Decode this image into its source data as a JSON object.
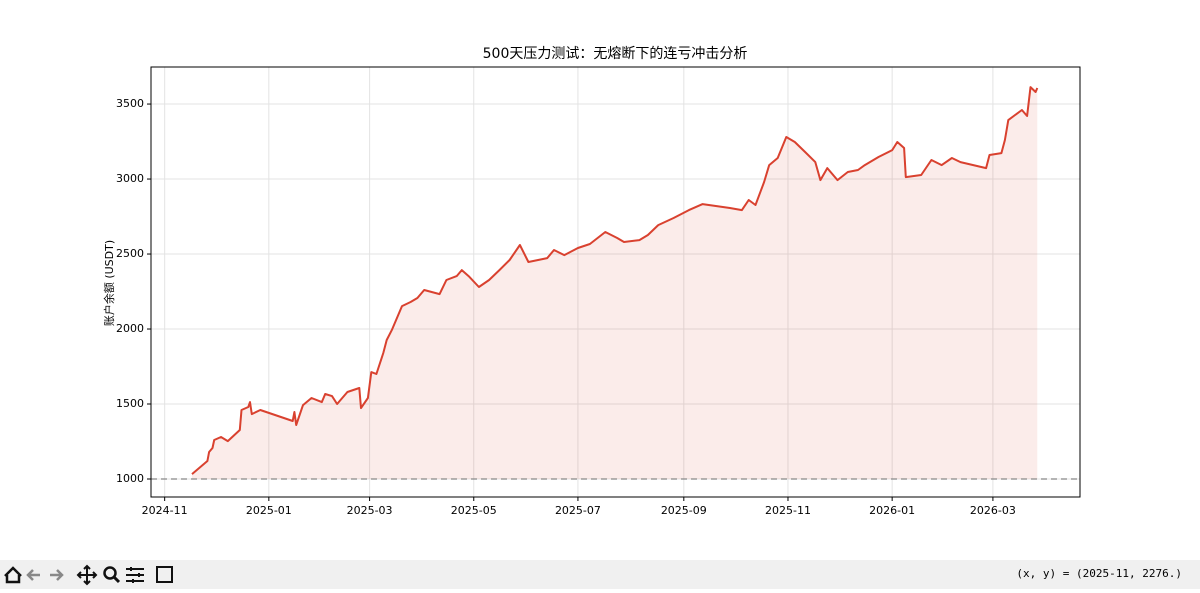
{
  "chart_data": {
    "type": "line",
    "title": "500天压力测试：无熔断下的连亏冲击分析",
    "ylabel": "账户余额 (USDT)",
    "x": [
      "2024-11-17",
      "2024-11-26",
      "2024-11-27",
      "2024-11-29",
      "2024-11-30",
      "2024-12-04",
      "2024-12-08",
      "2024-12-15",
      "2024-12-16",
      "2024-12-20",
      "2024-12-21",
      "2024-12-22",
      "2024-12-27",
      "2025-01-15",
      "2025-01-16",
      "2025-01-17",
      "2025-01-21",
      "2025-01-26",
      "2025-02-01",
      "2025-02-03",
      "2025-02-07",
      "2025-02-10",
      "2025-02-16",
      "2025-02-23",
      "2025-02-24",
      "2025-02-28",
      "2025-03-02",
      "2025-03-05",
      "2025-03-09",
      "2025-03-11",
      "2025-03-14",
      "2025-03-17",
      "2025-03-20",
      "2025-03-25",
      "2025-03-29",
      "2025-04-02",
      "2025-04-11",
      "2025-04-15",
      "2025-04-21",
      "2025-04-24",
      "2025-04-28",
      "2025-05-04",
      "2025-05-10",
      "2025-05-16",
      "2025-05-22",
      "2025-05-28",
      "2025-06-02",
      "2025-06-13",
      "2025-06-17",
      "2025-06-23",
      "2025-07-01",
      "2025-07-08",
      "2025-07-17",
      "2025-07-24",
      "2025-07-28",
      "2025-08-06",
      "2025-08-11",
      "2025-08-17",
      "2025-08-26",
      "2025-09-04",
      "2025-09-12",
      "2025-09-28",
      "2025-10-05",
      "2025-10-09",
      "2025-10-13",
      "2025-10-18",
      "2025-10-21",
      "2025-10-26",
      "2025-10-31",
      "2025-11-05",
      "2025-11-11",
      "2025-11-17",
      "2025-11-20",
      "2025-11-24",
      "2025-11-30",
      "2025-12-06",
      "2025-12-12",
      "2025-12-16",
      "2025-12-24",
      "2026-01-01",
      "2026-01-04",
      "2026-01-08",
      "2026-01-09",
      "2026-01-18",
      "2026-01-24",
      "2026-01-30",
      "2026-02-05",
      "2026-02-10",
      "2026-02-25",
      "2026-02-27",
      "2026-03-06",
      "2026-03-08",
      "2026-03-10",
      "2026-03-14",
      "2026-03-18",
      "2026-03-21",
      "2026-03-23",
      "2026-03-26",
      "2026-03-27"
    ],
    "series": [
      {
        "color": "#d9412f",
        "values": [
          1033,
          1120,
          1180,
          1207,
          1260,
          1280,
          1253,
          1327,
          1460,
          1480,
          1513,
          1433,
          1460,
          1387,
          1447,
          1360,
          1493,
          1540,
          1513,
          1567,
          1553,
          1500,
          1580,
          1607,
          1473,
          1540,
          1713,
          1700,
          1840,
          1927,
          1993,
          2073,
          2153,
          2180,
          2207,
          2260,
          2233,
          2327,
          2353,
          2393,
          2353,
          2280,
          2327,
          2393,
          2460,
          2560,
          2447,
          2473,
          2527,
          2493,
          2540,
          2567,
          2647,
          2607,
          2580,
          2593,
          2627,
          2693,
          2740,
          2793,
          2833,
          2807,
          2793,
          2860,
          2827,
          2980,
          3093,
          3140,
          3280,
          3247,
          3180,
          3113,
          2993,
          3073,
          2993,
          3047,
          3060,
          3093,
          3147,
          3193,
          3247,
          3207,
          3013,
          3027,
          3127,
          3093,
          3140,
          3113,
          3073,
          3160,
          3173,
          3260,
          3393,
          3427,
          3460,
          3420,
          3613,
          3580,
          3607
        ]
      }
    ],
    "hline": 1000,
    "xlim": [
      "2024-10-24",
      "2026-04-21"
    ],
    "xticks": [
      "2024-11",
      "2025-01",
      "2025-03",
      "2025-05",
      "2025-07",
      "2025-09",
      "2025-11",
      "2026-01",
      "2026-03"
    ],
    "ylim": [
      880,
      3747
    ],
    "yticks": [
      1000,
      1500,
      2000,
      2500,
      3000,
      3500
    ],
    "grid": true
  },
  "toolbar": {
    "status": "(x, y) = (2025-11, 2276.)"
  }
}
